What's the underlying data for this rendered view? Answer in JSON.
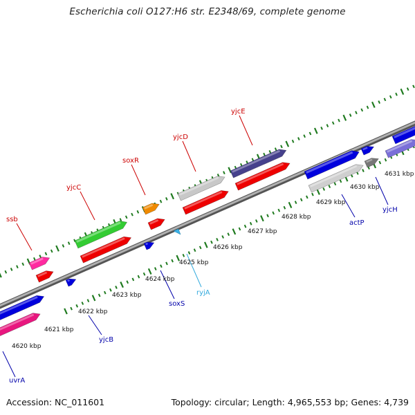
{
  "title": "Escherichia coli O127:H6 str. E2348/69, complete genome",
  "footer": {
    "accession": "Accession: NC_011601",
    "summary": "Topology: circular; Length: 4,965,553 bp; Genes: 4,739"
  },
  "scale_labels": [
    "4620 kbp",
    "4621 kbp",
    "4622 kbp",
    "4623 kbp",
    "4624 kbp",
    "4625 kbp",
    "4626 kbp",
    "4627 kbp",
    "4628 kbp",
    "4629 kbp",
    "4630 kbp",
    "4631 kbp"
  ],
  "gene_labels": [
    {
      "name": "ssb",
      "color": "#cc0000"
    },
    {
      "name": "yjcC",
      "color": "#cc0000"
    },
    {
      "name": "soxR",
      "color": "#cc0000"
    },
    {
      "name": "yjcD",
      "color": "#cc0000"
    },
    {
      "name": "yjcE",
      "color": "#cc0000"
    },
    {
      "name": "uvrA",
      "color": "#0000aa"
    },
    {
      "name": "yjcB",
      "color": "#0000aa"
    },
    {
      "name": "soxS",
      "color": "#0000aa"
    },
    {
      "name": "ryjA",
      "color": "#33aadd"
    },
    {
      "name": "actP",
      "color": "#0000aa"
    },
    {
      "name": "yjcH",
      "color": "#0000aa"
    }
  ],
  "colors": {
    "backbone": "#8a8a8a",
    "tick": "#1f7a1f",
    "cds_forward": "#ee0000",
    "cds_reverse": "#0000dd"
  }
}
